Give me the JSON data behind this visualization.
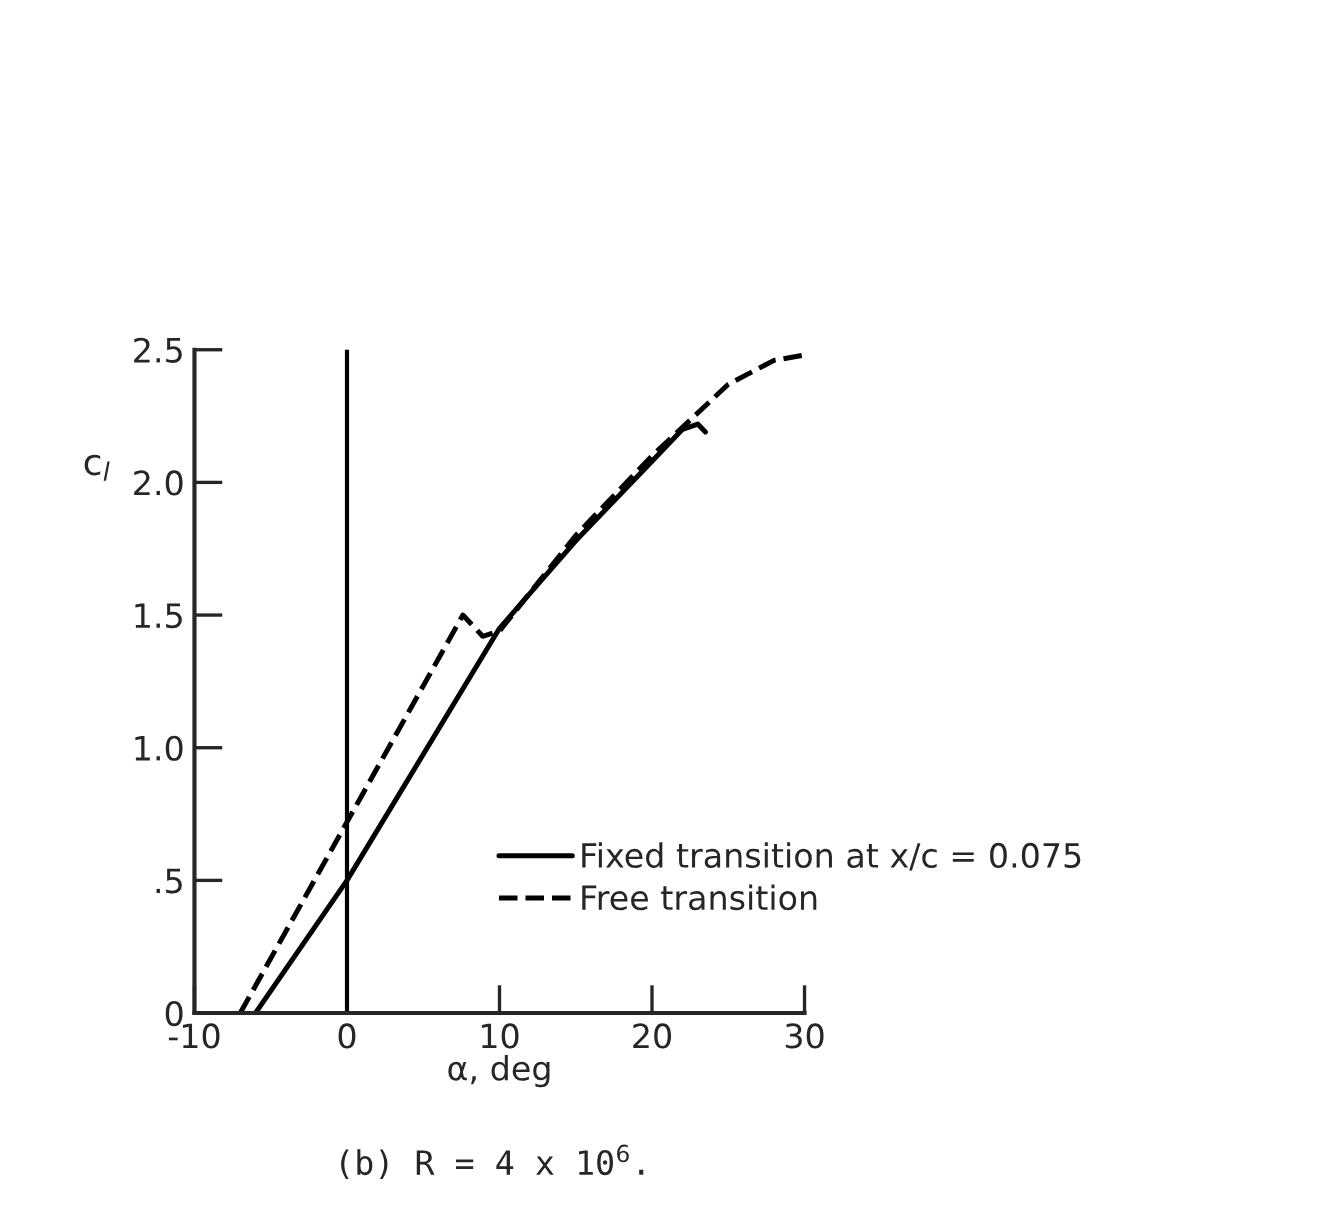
{
  "chart_data": {
    "type": "line",
    "xlabel": "α, deg",
    "ylabel": "c$_{l}$",
    "annotations": [
      "(b) R = 4 x 10$^{6}$."
    ],
    "xlim": [
      -10,
      30
    ],
    "ylim": [
      0,
      2.5
    ],
    "xticks": [
      -10,
      0,
      10,
      20,
      30
    ],
    "yticks": [
      0,
      {
        "value": 0.5,
        "label": ".5"
      },
      {
        "value": 1.0,
        "label": "1.0"
      },
      {
        "value": 1.5,
        "label": "1.5"
      },
      {
        "value": 2.0,
        "label": "2.0"
      },
      2.5
    ],
    "grid": false,
    "legend": "bottom right",
    "marker": "none",
    "ref_lines": [
      {
        "axis": "x",
        "value": 0,
        "color": "#000000"
      }
    ],
    "series": [
      {
        "name": "Fixed transition at x/c = 0.075",
        "color": "#000000",
        "line_style": "solid",
        "x": [
          -6,
          0,
          10,
          15,
          20,
          22,
          23,
          23.5
        ],
        "values": [
          0,
          0.5,
          1.45,
          1.78,
          2.08,
          2.2,
          2.22,
          2.19
        ]
      },
      {
        "name": "Free transition",
        "color": "#000000",
        "line_style": "dashed",
        "x": [
          -7,
          0,
          7.6,
          8.9,
          10,
          15,
          20,
          25,
          28,
          30
        ],
        "values": [
          0,
          0.72,
          1.5,
          1.42,
          1.44,
          1.8,
          2.1,
          2.37,
          2.46,
          2.48
        ]
      }
    ]
  }
}
